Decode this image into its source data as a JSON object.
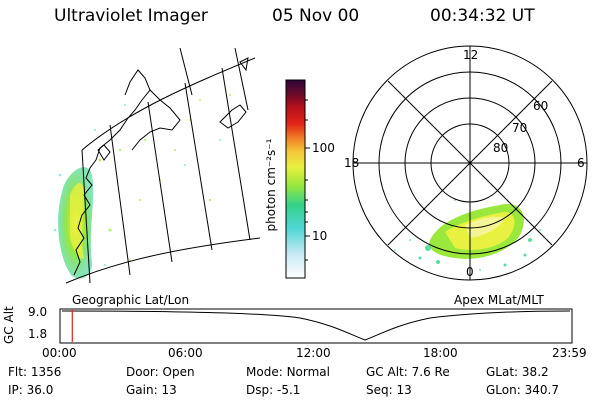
{
  "header": {
    "instrument": "Ultraviolet Imager",
    "date": "05 Nov 00",
    "time": "00:34:32 UT"
  },
  "left_panel": {
    "caption": "Geographic Lat/Lon"
  },
  "right_panel": {
    "caption": "Apex MLat/MLT",
    "mlt_labels": {
      "top": "12",
      "left": "18",
      "right": "6",
      "bottom": "0"
    },
    "lat_labels": [
      "60",
      "70",
      "80"
    ]
  },
  "colorbar": {
    "unit_label": "photon cm⁻²s⁻¹",
    "tick_labels": [
      "100",
      "10"
    ],
    "scale": "log",
    "colors": [
      "#ffffff",
      "#c9e9f5",
      "#4fd6d6",
      "#35d28a",
      "#9be83c",
      "#e8f040",
      "#f5c53a",
      "#f07a26",
      "#e02418",
      "#b8101c",
      "#6a0a2a",
      "#2a063a"
    ]
  },
  "timeline": {
    "axis_label": "GC Alt",
    "y_ticks": [
      "9.0",
      "1.8"
    ],
    "x_ticks": [
      "00:00",
      "06:00",
      "12:00",
      "18:00",
      "23:59"
    ],
    "current_time_fraction": 0.024
  },
  "status": {
    "col1": [
      {
        "label": "Flt:",
        "value": "1356"
      },
      {
        "label": "IP:",
        "value": "36.0"
      }
    ],
    "col2": [
      {
        "label": "Door:",
        "value": "Open"
      },
      {
        "label": "Gain:",
        "value": "13"
      }
    ],
    "col3": [
      {
        "label": "Mode:",
        "value": "Normal"
      },
      {
        "label": "Dsp:",
        "value": "-5.1"
      }
    ],
    "col4": [
      {
        "label": "GC Alt:",
        "value": "7.6 Re"
      },
      {
        "label": "Seq:",
        "value": "13"
      }
    ],
    "col5": [
      {
        "label": "GLat:",
        "value": "38.2"
      },
      {
        "label": "GLon:",
        "value": "340.7"
      }
    ]
  }
}
